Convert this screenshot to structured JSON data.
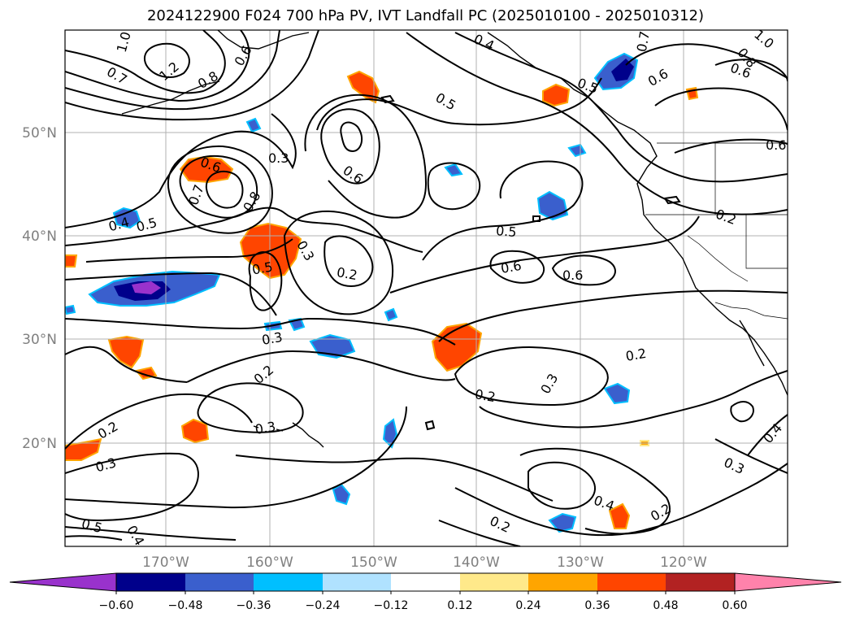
{
  "title": "2024122900 F024 700 hPa PV, IVT Landfall PC (2025010100 - 2025010312)",
  "map": {
    "lon_labels": [
      "170°W",
      "160°W",
      "150°W",
      "140°W",
      "130°W",
      "120°W"
    ],
    "lat_labels": [
      "50°N",
      "40°N",
      "30°N",
      "20°N"
    ],
    "contour_labels": [
      "1.0",
      "1.2",
      "0.7",
      "0.8",
      "0.6",
      "0.4",
      "0.7",
      "0.5",
      "0.6",
      "1.0",
      "0.8",
      "0.6",
      "0.3",
      "0.6",
      "0.7",
      "0.6",
      "0.8",
      "0.6",
      "0.5",
      "0.5",
      "0.4",
      "0.5",
      "0.6",
      "0.6",
      "0.5",
      "0.3",
      "0.2",
      "0.3",
      "0.2",
      "0.3",
      "0.2",
      "0.3",
      "0.2",
      "0.2",
      "0.3",
      "0.4",
      "0.2",
      "0.2",
      "0.3",
      "0.4",
      "0.5",
      "0.4",
      "0.2"
    ]
  },
  "colorbar": {
    "ticks": [
      "−0.60",
      "−0.48",
      "−0.36",
      "−0.24",
      "−0.12",
      "0.12",
      "0.24",
      "0.36",
      "0.48",
      "0.60"
    ],
    "colors": [
      "#9932CC",
      "#00008B",
      "#3A5FCD",
      "#00BFFF",
      "#B0E2FF",
      "#FFFFFF",
      "#FFE98A",
      "#FFA500",
      "#FF4500",
      "#B22222",
      "#FF82AB"
    ]
  }
}
